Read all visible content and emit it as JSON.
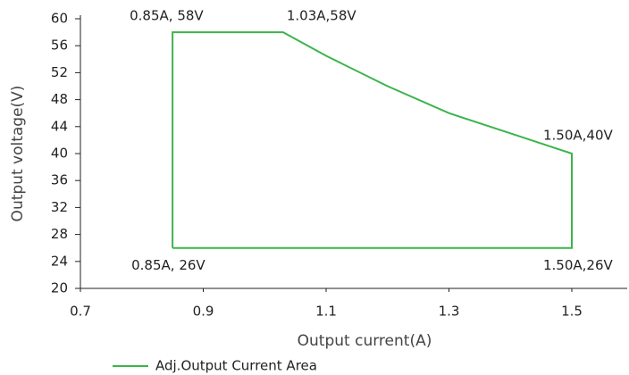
{
  "chart_data": {
    "type": "line",
    "x_label": "Output current(A)",
    "y_label": "Output voltage(V)",
    "xlim": [
      0.7,
      1.5
    ],
    "xticks": [
      0.7,
      0.9,
      1.1,
      1.3,
      1.5
    ],
    "ylim": [
      20,
      60
    ],
    "yticks": [
      20,
      24,
      28,
      32,
      36,
      40,
      44,
      48,
      52,
      56,
      60
    ],
    "legend": "bottom",
    "series": [
      {
        "name": "Adj.Output Current Area",
        "color": "#3cb44b",
        "x": [
          0.85,
          0.85,
          1.03,
          1.1,
          1.2,
          1.3,
          1.4,
          1.5,
          1.5,
          0.85
        ],
        "values": [
          26,
          58,
          58,
          54.5,
          50,
          46,
          43,
          40,
          26,
          26
        ]
      }
    ],
    "annotations": [
      {
        "text": "0.85A, 58V",
        "x": 0.85,
        "y": 58
      },
      {
        "text": "1.03A,58V",
        "x": 1.03,
        "y": 58
      },
      {
        "text": "1.50A,40V",
        "x": 1.5,
        "y": 40
      },
      {
        "text": "0.85A, 26V",
        "x": 0.85,
        "y": 26
      },
      {
        "text": "1.50A,26V",
        "x": 1.5,
        "y": 26
      }
    ]
  }
}
